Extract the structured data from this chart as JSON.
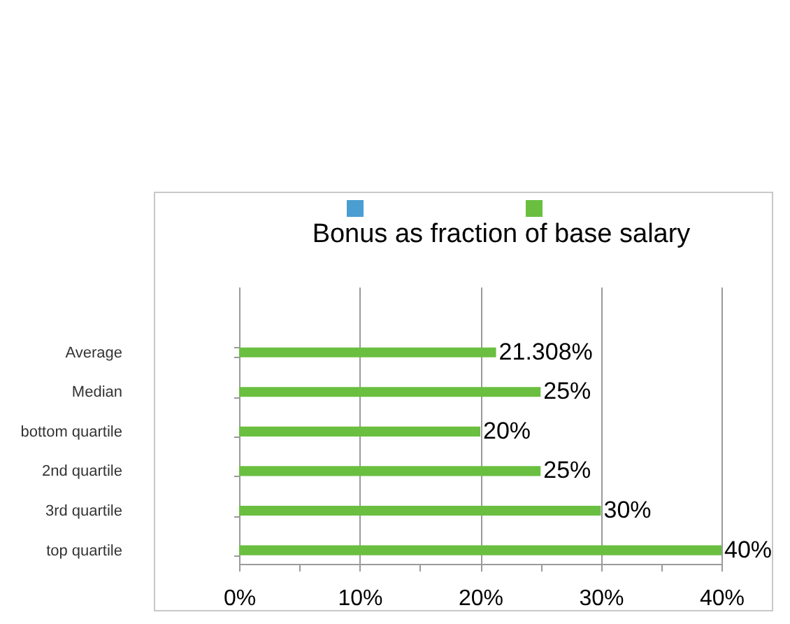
{
  "chart_data": {
    "type": "bar",
    "orientation": "horizontal",
    "title": "Bonus as fraction of base salary",
    "categories": [
      "Average",
      "Median",
      "bottom quartile",
      "2nd quartile",
      "3rd quartile",
      "top quartile"
    ],
    "values": [
      21.308,
      25,
      20,
      25,
      30,
      40
    ],
    "color": "#6abf40",
    "value_labels": [
      "21.308%",
      "25%",
      "20%",
      "25%",
      "30%",
      "40%"
    ],
    "xlim": [
      0,
      40
    ],
    "xticks": [
      {
        "value": 0,
        "label": "0%"
      },
      {
        "value": 5,
        "label": null
      },
      {
        "value": 10,
        "label": "10%"
      },
      {
        "value": 15,
        "label": null
      },
      {
        "value": 20,
        "label": "20%"
      },
      {
        "value": 25,
        "label": null
      },
      {
        "value": 30,
        "label": "30%"
      },
      {
        "value": 35,
        "label": null
      },
      {
        "value": 40,
        "label": "40%"
      }
    ],
    "grid": "x"
  }
}
